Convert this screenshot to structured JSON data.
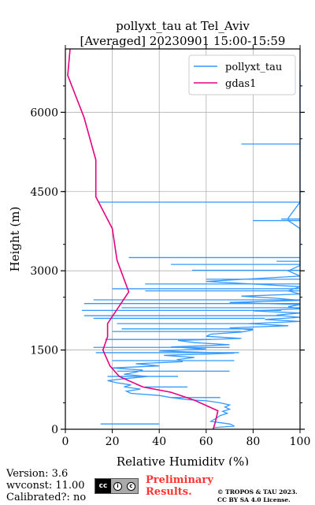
{
  "chart_data": {
    "type": "line",
    "title": "pollyxt_tau at Tel_Aviv",
    "subtitle": "[Averaged] 20230901 15:00-15:59",
    "xlabel": "Relative Humidity (%)",
    "ylabel": "Height (m)",
    "xlim": [
      0,
      100
    ],
    "ylim": [
      0,
      7200
    ],
    "xticks": [
      "0",
      "20",
      "40",
      "60",
      "80",
      "100"
    ],
    "yticks": [
      "0",
      "1500",
      "3000",
      "4500",
      "6000"
    ],
    "grid": true,
    "legend_position": "top-right",
    "series": [
      {
        "name": "pollyxt_tau",
        "color": "#3399ff",
        "points": [
          [
            63,
            30
          ],
          [
            72,
            60
          ],
          [
            70,
            100
          ],
          [
            62,
            150
          ],
          [
            64,
            200
          ],
          [
            66,
            260
          ],
          [
            69,
            300
          ],
          [
            67,
            340
          ],
          [
            70,
            380
          ],
          [
            68,
            420
          ],
          [
            70,
            460
          ],
          [
            66,
            500
          ],
          [
            60,
            540
          ],
          [
            52,
            560
          ],
          [
            45,
            600
          ],
          [
            40,
            640
          ],
          [
            28,
            680
          ],
          [
            26,
            720
          ],
          [
            32,
            760
          ],
          [
            25,
            800
          ],
          [
            28,
            840
          ],
          [
            22,
            880
          ],
          [
            18,
            920
          ],
          [
            26,
            960
          ],
          [
            35,
            1000
          ],
          [
            25,
            1040
          ],
          [
            30,
            1080
          ],
          [
            33,
            1120
          ],
          [
            20,
            1160
          ],
          [
            40,
            1200
          ],
          [
            30,
            1240
          ],
          [
            50,
            1280
          ],
          [
            48,
            1320
          ],
          [
            55,
            1360
          ],
          [
            42,
            1400
          ],
          [
            72,
            1440
          ],
          [
            40,
            1480
          ],
          [
            60,
            1520
          ],
          [
            45,
            1560
          ],
          [
            70,
            1600
          ],
          [
            55,
            1640
          ],
          [
            48,
            1680
          ],
          [
            75,
            1720
          ],
          [
            60,
            1760
          ],
          [
            62,
            1800
          ],
          [
            75,
            1840
          ],
          [
            80,
            1880
          ],
          [
            70,
            1920
          ],
          [
            95,
            1960
          ],
          [
            78,
            2000
          ],
          [
            100,
            2040
          ],
          [
            85,
            2080
          ],
          [
            100,
            2120
          ],
          [
            90,
            2160
          ],
          [
            100,
            2200
          ],
          [
            80,
            2240
          ],
          [
            100,
            2280
          ],
          [
            95,
            2320
          ],
          [
            100,
            2360
          ],
          [
            70,
            2400
          ],
          [
            100,
            2440
          ],
          [
            90,
            2480
          ],
          [
            75,
            2520
          ],
          [
            100,
            2560
          ],
          [
            95,
            2620
          ],
          [
            100,
            2700
          ],
          [
            60,
            2800
          ],
          [
            100,
            2900
          ],
          [
            95,
            3000
          ],
          [
            100,
            3100
          ],
          [
            100,
            3250
          ],
          [
            100,
            3400
          ],
          [
            100,
            3600
          ],
          [
            100,
            3800
          ],
          [
            95,
            3950
          ],
          [
            95,
            4000
          ],
          [
            100,
            4300
          ],
          [
            100,
            4700
          ],
          [
            100,
            5000
          ],
          [
            100,
            5400
          ],
          [
            100,
            5700
          ],
          [
            100,
            6000
          ],
          [
            100,
            6400
          ],
          [
            100,
            6800
          ]
        ],
        "spikes": [
          [
            15,
            100,
            40
          ],
          [
            66,
            600,
            45
          ],
          [
            52,
            800,
            34
          ],
          [
            48,
            1000,
            18
          ],
          [
            70,
            1100,
            22
          ],
          [
            72,
            1300,
            20
          ],
          [
            74,
            1450,
            13
          ],
          [
            70,
            1550,
            12
          ],
          [
            62,
            1700,
            17
          ],
          [
            75,
            1850,
            20
          ],
          [
            80,
            1900,
            24
          ],
          [
            82,
            2000,
            22
          ],
          [
            85,
            2100,
            12
          ],
          [
            92,
            2150,
            8
          ],
          [
            92,
            2250,
            7
          ],
          [
            100,
            2300,
            24
          ],
          [
            100,
            2380,
            8
          ],
          [
            100,
            2450,
            12
          ],
          [
            100,
            2620,
            34
          ],
          [
            100,
            2660,
            20
          ],
          [
            100,
            2750,
            34
          ],
          [
            100,
            2840,
            60
          ],
          [
            100,
            3010,
            54
          ],
          [
            100,
            3120,
            45
          ],
          [
            100,
            3180,
            90
          ],
          [
            100,
            3250,
            27
          ],
          [
            100,
            4300,
            14
          ],
          [
            100,
            3950,
            80
          ],
          [
            100,
            3980,
            92
          ],
          [
            100,
            5400,
            75
          ]
        ]
      },
      {
        "name": "gdas1",
        "color": "#e6007e",
        "points": [
          [
            63,
            0
          ],
          [
            64,
            150
          ],
          [
            65,
            350
          ],
          [
            55,
            550
          ],
          [
            45,
            700
          ],
          [
            33,
            800
          ],
          [
            23,
            1000
          ],
          [
            19,
            1200
          ],
          [
            16,
            1500
          ],
          [
            18,
            1750
          ],
          [
            18,
            2000
          ],
          [
            27,
            2600
          ],
          [
            22,
            3200
          ],
          [
            20,
            3800
          ],
          [
            13,
            4400
          ],
          [
            13,
            5100
          ],
          [
            8,
            5900
          ],
          [
            1,
            6700
          ],
          [
            2,
            7200
          ]
        ]
      }
    ]
  },
  "footer": {
    "version": "Version: 3.6",
    "wvconst": "wvconst:  11.00",
    "calibrated": "Calibrated?: no",
    "preliminary_line1": "Preliminary",
    "preliminary_line2": "Results.",
    "copyright_line1": "© TROPOS & TAU 2023.",
    "copyright_line2": "CC BY SA 4.0 License.",
    "license_badge": "cc by-sa"
  }
}
